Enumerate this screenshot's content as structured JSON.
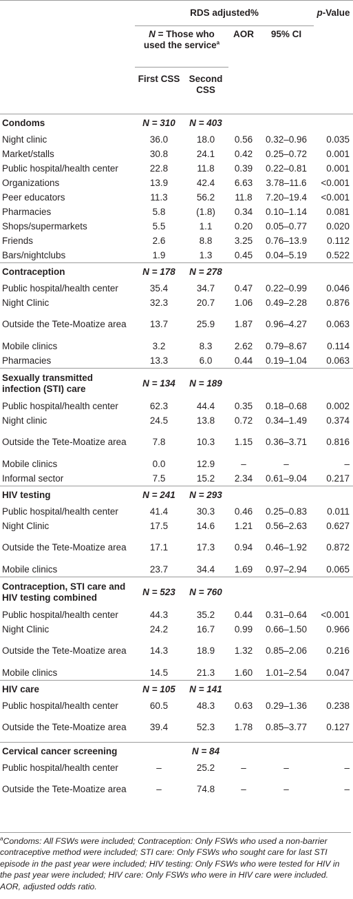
{
  "header": {
    "rds": "RDS adjusted%",
    "pvalue_p": "p",
    "pvalue_rest": "-Value",
    "n_used": "N",
    "n_used_rest": " = Those who used the service",
    "n_used_sup": "a",
    "aor": "AOR",
    "ci": "95% CI",
    "first": "First CSS",
    "second": "Second CSS"
  },
  "sections": [
    {
      "label": "Condoms",
      "n1": "N = 310",
      "n2": "N = 403",
      "rows": [
        {
          "label": "Night clinic",
          "first": "36.0",
          "second": "18.0",
          "aor": "0.56",
          "ci": "0.32–0.96",
          "p": "0.035"
        },
        {
          "label": "Market/stalls",
          "first": "30.8",
          "second": "24.1",
          "aor": "0.42",
          "ci": "0.25–0.72",
          "p": "0.001"
        },
        {
          "label": "Public hospital/health center",
          "first": "22.8",
          "second": "11.8",
          "aor": "0.39",
          "ci": "0.22–0.81",
          "p": "0.001"
        },
        {
          "label": "Organizations",
          "first": "13.9",
          "second": "42.4",
          "aor": "6.63",
          "ci": "3.78–11.6",
          "p": "<0.001"
        },
        {
          "label": "Peer educators",
          "first": "11.3",
          "second": "56.2",
          "aor": "11.8",
          "ci": "7.20–19.4",
          "p": "<0.001"
        },
        {
          "label": "Pharmacies",
          "first": "5.8",
          "second": "(1.8)",
          "aor": "0.34",
          "ci": "0.10–1.14",
          "p": "0.081"
        },
        {
          "label": "Shops/supermarkets",
          "first": "5.5",
          "second": "1.1",
          "aor": "0.20",
          "ci": "0.05–0.77",
          "p": "0.020"
        },
        {
          "label": "Friends",
          "first": "2.6",
          "second": "8.8",
          "aor": "3.25",
          "ci": "0.76–13.9",
          "p": "0.112"
        },
        {
          "label": "Bars/nightclubs",
          "first": "1.9",
          "second": "1.3",
          "aor": "0.45",
          "ci": "0.04–5.19",
          "p": "0.522"
        }
      ]
    },
    {
      "label": "Contraception",
      "n1": "N = 178",
      "n2": "N = 278",
      "rows": [
        {
          "label": "Public hospital/health center",
          "first": "35.4",
          "second": "34.7",
          "aor": "0.47",
          "ci": "0.22–0.99",
          "p": "0.046"
        },
        {
          "label": "Night Clinic",
          "first": "32.3",
          "second": "20.7",
          "aor": "1.06",
          "ci": "0.49–2.28",
          "p": "0.876"
        },
        {
          "label": "Outside the Tete-Moatize area",
          "first": "13.7",
          "second": "25.9",
          "aor": "1.87",
          "ci": "0.96–4.27",
          "p": "0.063",
          "tall": true
        },
        {
          "label": "Mobile clinics",
          "first": "3.2",
          "second": "8.3",
          "aor": "2.62",
          "ci": "0.79–8.67",
          "p": "0.114"
        },
        {
          "label": "Pharmacies",
          "first": "13.3",
          "second": "6.0",
          "aor": "0.44",
          "ci": "0.19–1.04",
          "p": "0.063"
        }
      ]
    },
    {
      "label": "Sexually transmitted infection (STI) care",
      "tall": true,
      "n1": "N = 134",
      "n2": "N = 189",
      "rows": [
        {
          "label": "Public hospital/health center",
          "first": "62.3",
          "second": "44.4",
          "aor": "0.35",
          "ci": "0.18–0.68",
          "p": "0.002"
        },
        {
          "label": "Night clinic",
          "first": "24.5",
          "second": "13.8",
          "aor": "0.72",
          "ci": "0.34–1.49",
          "p": "0.374"
        },
        {
          "label": "Outside the Tete-Moatize area",
          "first": "7.8",
          "second": "10.3",
          "aor": "1.15",
          "ci": "0.36–3.71",
          "p": "0.816",
          "tall": true
        },
        {
          "label": "Mobile clinics",
          "first": "0.0",
          "second": "12.9",
          "aor": "–",
          "ci": "–",
          "p": "–"
        },
        {
          "label": "Informal sector",
          "first": "7.5",
          "second": "15.2",
          "aor": "2.34",
          "ci": "0.61–9.04",
          "p": "0.217"
        }
      ]
    },
    {
      "label": "HIV testing",
      "n1": "N = 241",
      "n2": "N = 293",
      "rows": [
        {
          "label": "Public hospital/health center",
          "first": "41.4",
          "second": "30.3",
          "aor": "0.46",
          "ci": "0.25–0.83",
          "p": "0.011"
        },
        {
          "label": "Night Clinic",
          "first": "17.5",
          "second": "14.6",
          "aor": "1.21",
          "ci": "0.56–2.63",
          "p": "0.627"
        },
        {
          "label": "Outside the Tete-Moatize area",
          "first": "17.1",
          "second": "17.3",
          "aor": "0.94",
          "ci": "0.46–1.92",
          "p": "0.872",
          "tall": true
        },
        {
          "label": "Mobile clinics",
          "first": "23.7",
          "second": "34.4",
          "aor": "1.69",
          "ci": "0.97–2.94",
          "p": "0.065"
        }
      ]
    },
    {
      "label": "Contraception, STI care and HIV testing combined",
      "tall": true,
      "n1": "N = 523",
      "n2": "N = 760",
      "rows": [
        {
          "label": "Public hospital/health center",
          "first": "44.3",
          "second": "35.2",
          "aor": "0.44",
          "ci": "0.31–0.64",
          "p": "<0.001"
        },
        {
          "label": "Night Clinic",
          "first": "24.2",
          "second": "16.7",
          "aor": "0.99",
          "ci": "0.66–1.50",
          "p": "0.966"
        },
        {
          "label": "Outside the Tete-Moatize area",
          "first": "14.3",
          "second": "18.9",
          "aor": "1.32",
          "ci": "0.85–2.06",
          "p": "0.216",
          "tall": true
        },
        {
          "label": "Mobile clinics",
          "first": "14.5",
          "second": "21.3",
          "aor": "1.60",
          "ci": "1.01–2.54",
          "p": "0.047"
        }
      ]
    },
    {
      "label": "HIV care",
      "n1": "N = 105",
      "n2": "N = 141",
      "rows": [
        {
          "label": "Public hospital/health center",
          "first": "60.5",
          "second": "48.3",
          "aor": "0.63",
          "ci": "0.29–1.36",
          "p": "0.238"
        },
        {
          "label": "Outside the Tete-Moatize area",
          "first": "39.4",
          "second": "52.3",
          "aor": "1.78",
          "ci": "0.85–3.77",
          "p": "0.127",
          "tall": true
        }
      ]
    },
    {
      "label": "Cervical cancer screening",
      "n1": "",
      "n2": "N = 84",
      "rows": [
        {
          "label": "Public hospital/health center",
          "first": "–",
          "second": "25.2",
          "aor": "–",
          "ci": "–",
          "p": "–"
        },
        {
          "label": "Outside the Tete-Moatize area",
          "first": "–",
          "second": "74.8",
          "aor": "–",
          "ci": "–",
          "p": "–",
          "tall": true
        }
      ]
    }
  ],
  "footer": {
    "sup": "a",
    "note": "Condoms: All FSWs were included; Contraception: Only FSWs who used a non-barrier contraceptive method were included; STI care: Only FSWs who sought care for last STI episode in the past year were included; HIV testing: Only FSWs who were tested for HIV in the past year were included; HIV care: Only FSWs who were in HIV care were included.",
    "abbrev": "AOR, adjusted odds ratio."
  }
}
